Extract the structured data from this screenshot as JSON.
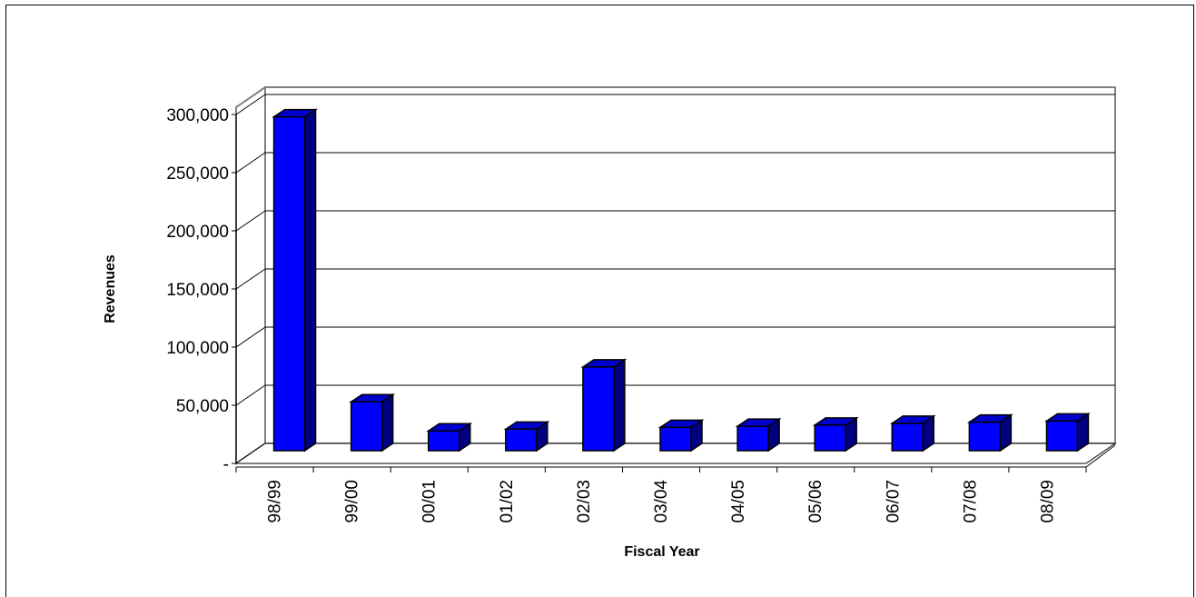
{
  "chart_data": {
    "type": "bar",
    "title": "",
    "xlabel": "Fiscal Year",
    "ylabel": "Revenues",
    "categories": [
      "98/99",
      "99/00",
      "00/01",
      "01/02",
      "02/03",
      "03/04",
      "04/05",
      "05/06",
      "06/07",
      "07/08",
      "08/09"
    ],
    "values": [
      287000,
      42000,
      17000,
      18500,
      72000,
      20000,
      21000,
      22000,
      23500,
      24500,
      25500
    ],
    "ylim": [
      0,
      300000
    ],
    "yticks": [
      0,
      50000,
      100000,
      150000,
      200000,
      250000,
      300000
    ],
    "ytick_labels": [
      "-",
      "50,000",
      "100,000",
      "150,000",
      "200,000",
      "250,000",
      "300,000"
    ],
    "grid": true,
    "legend": "none",
    "bar_color": "#0000ff"
  }
}
